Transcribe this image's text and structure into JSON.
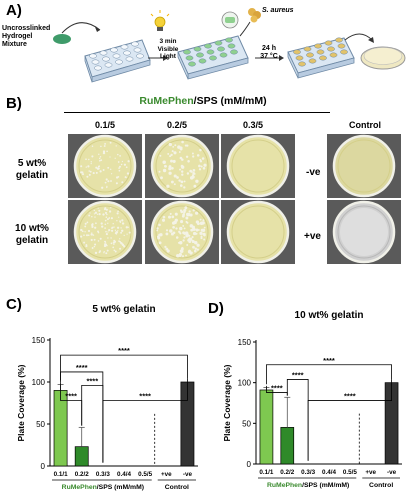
{
  "panel_a": {
    "letter": "A)",
    "mixture_label_1": "Uncrosslinked",
    "mixture_label_2": "Hydrogel",
    "mixture_label_3": "Mixture",
    "light_label_1": "3 min",
    "light_label_2": "Visible",
    "light_label_3": "Light",
    "bacteria_label": "S. aureus",
    "incubation_1": "24 h",
    "incubation_2": "37 °C"
  },
  "panel_b": {
    "letter": "B)",
    "title_green": "RuMePhen",
    "title_rest": "/SPS (mM/mM)",
    "cols": [
      "0.1/5",
      "0.2/5",
      "0.3/5"
    ],
    "control_header": "Control",
    "row1_a": "5 wt%",
    "row1_b": "gelatin",
    "row2_a": "10 wt%",
    "row2_b": "gelatin",
    "neg": "-ve",
    "pos": "+ve",
    "colors": {
      "agar": "#e6e2a8",
      "agar_dark": "#d4cf8a",
      "colony": "#f4f3e6",
      "clear": "#dcd8a0",
      "pos_plate": "#d0d0d0"
    }
  },
  "panel_c": {
    "letter": "C)"
  },
  "panel_d": {
    "letter": "D)"
  },
  "chart_data": [
    {
      "type": "bar",
      "title": "5 wt% gelatin",
      "ylabel": "Plate Coverage (%)",
      "ylim": [
        0,
        150
      ],
      "yticks": [
        "0",
        "50",
        "100",
        "150"
      ],
      "categories": [
        "0.1/1",
        "0.2/2",
        "0.3/3",
        "0.4/4",
        "0.5/5",
        "+ve",
        "-ve"
      ],
      "values": [
        90,
        23,
        0,
        0,
        0,
        0,
        100
      ],
      "errors": [
        7,
        23,
        0,
        0,
        0,
        0,
        0
      ],
      "bar_colors": [
        "#7ec850",
        "#2f8a2a",
        "#2f8a2a",
        "#2f8a2a",
        "#2f8a2a",
        "#333333",
        "#333333"
      ],
      "group_label_green": "RuMePhen",
      "group_label_rest": "/SPS (mM/mM)",
      "control_label": "Control",
      "significance": "****"
    },
    {
      "type": "bar",
      "title": "10 wt% gelatin",
      "ylabel": "Plate Coverage (%)",
      "ylim": [
        0,
        150
      ],
      "yticks": [
        "0",
        "50",
        "100",
        "150"
      ],
      "categories": [
        "0.1/1",
        "0.2/2",
        "0.3/3",
        "0.4/4",
        "0.5/5",
        "+ve",
        "-ve"
      ],
      "values": [
        91,
        45,
        0,
        0,
        0,
        0,
        100
      ],
      "errors": [
        3,
        37,
        0,
        0,
        0,
        0,
        0
      ],
      "bar_colors": [
        "#7ec850",
        "#2f8a2a",
        "#2f8a2a",
        "#2f8a2a",
        "#2f8a2a",
        "#333333",
        "#333333"
      ],
      "group_label_green": "RuMePhen",
      "group_label_rest": "/SPS (mM/mM)",
      "control_label": "Control",
      "significance": "****"
    }
  ]
}
